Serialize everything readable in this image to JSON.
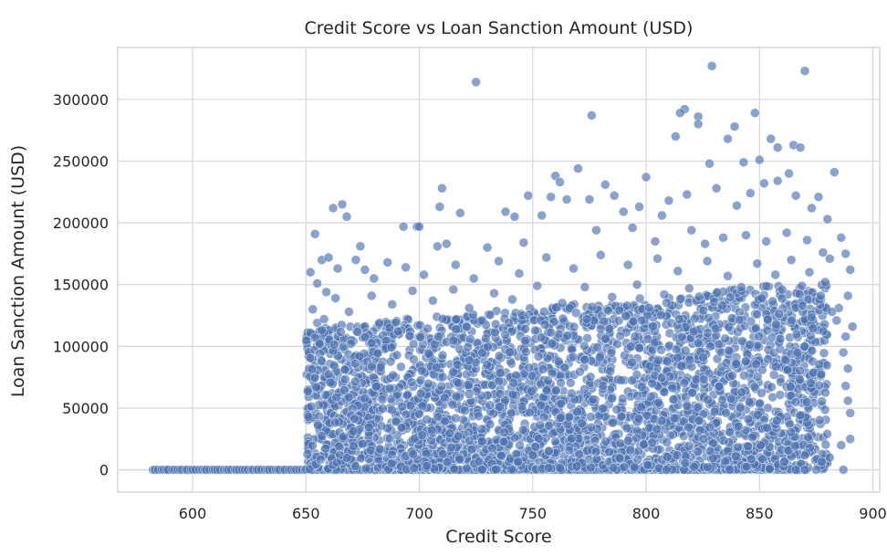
{
  "chart_data": {
    "type": "scatter",
    "title": "Credit Score vs Loan Sanction Amount (USD)",
    "xlabel": "Credit Score",
    "ylabel": "Loan Sanction Amount (USD)",
    "xlim": [
      567,
      903
    ],
    "ylim": [
      -18000,
      342000
    ],
    "x_ticks": [
      600,
      650,
      700,
      750,
      800,
      850,
      900
    ],
    "y_ticks": [
      0,
      50000,
      100000,
      150000,
      200000,
      250000,
      300000
    ],
    "grid": true,
    "marker_color": "#4c72b0",
    "zero_band": {
      "x_range": [
        582,
        868
      ],
      "y": 0
    },
    "dense_cloud": {
      "x_range": [
        650,
        890
      ],
      "y_range": [
        0,
        200000
      ]
    },
    "points": [
      [
        725,
        314000
      ],
      [
        829,
        327000
      ],
      [
        870,
        323000
      ],
      [
        776,
        287000
      ],
      [
        817,
        292000
      ],
      [
        815,
        289000
      ],
      [
        823,
        286000
      ],
      [
        823,
        280000
      ],
      [
        848,
        289000
      ],
      [
        839,
        278000
      ],
      [
        813,
        270000
      ],
      [
        855,
        268000
      ],
      [
        858,
        261000
      ],
      [
        865,
        263000
      ],
      [
        868,
        261000
      ],
      [
        836,
        268000
      ],
      [
        828,
        248000
      ],
      [
        760,
        238000
      ],
      [
        762,
        233000
      ],
      [
        770,
        244000
      ],
      [
        800,
        237000
      ],
      [
        850,
        251000
      ],
      [
        843,
        249000
      ],
      [
        852,
        232000
      ],
      [
        858,
        234000
      ],
      [
        863,
        240000
      ],
      [
        883,
        241000
      ],
      [
        710,
        228000
      ],
      [
        748,
        222000
      ],
      [
        758,
        221000
      ],
      [
        765,
        219000
      ],
      [
        775,
        219000
      ],
      [
        782,
        231000
      ],
      [
        786,
        222000
      ],
      [
        797,
        213000
      ],
      [
        810,
        218000
      ],
      [
        818,
        223000
      ],
      [
        831,
        228000
      ],
      [
        846,
        224000
      ],
      [
        866,
        222000
      ],
      [
        876,
        221000
      ],
      [
        662,
        212000
      ],
      [
        666,
        215000
      ],
      [
        668,
        205000
      ],
      [
        709,
        213000
      ],
      [
        718,
        208000
      ],
      [
        738,
        209000
      ],
      [
        742,
        205000
      ],
      [
        754,
        206000
      ],
      [
        790,
        209000
      ],
      [
        807,
        206000
      ],
      [
        840,
        214000
      ],
      [
        873,
        212000
      ],
      [
        880,
        203000
      ],
      [
        886,
        188000
      ],
      [
        888,
        175000
      ],
      [
        890,
        162000
      ],
      [
        889,
        141000
      ],
      [
        891,
        116000
      ],
      [
        885,
        131000
      ],
      [
        884,
        121000
      ],
      [
        888,
        108000
      ],
      [
        887,
        95000
      ],
      [
        889,
        82000
      ],
      [
        888,
        68000
      ],
      [
        889,
        56000
      ],
      [
        890,
        46000
      ],
      [
        890,
        25000
      ],
      [
        886,
        20000
      ],
      [
        887,
        0
      ],
      [
        881,
        10000
      ],
      [
        875,
        0
      ],
      [
        870,
        0
      ],
      [
        866,
        0
      ],
      [
        654,
        191000
      ],
      [
        657,
        170000
      ],
      [
        660,
        172000
      ],
      [
        672,
        170000
      ],
      [
        674,
        181000
      ],
      [
        693,
        197000
      ],
      [
        699,
        197000
      ],
      [
        700,
        197000
      ],
      [
        708,
        181000
      ],
      [
        712,
        183000
      ],
      [
        730,
        180000
      ],
      [
        746,
        184000
      ],
      [
        778,
        194000
      ],
      [
        794,
        196000
      ],
      [
        804,
        185000
      ],
      [
        820,
        194000
      ],
      [
        826,
        183000
      ],
      [
        834,
        188000
      ],
      [
        844,
        190000
      ],
      [
        853,
        185000
      ],
      [
        862,
        192000
      ],
      [
        871,
        186000
      ],
      [
        878,
        176000
      ],
      [
        652,
        160000
      ],
      [
        655,
        151000
      ],
      [
        659,
        144000
      ],
      [
        664,
        163000
      ],
      [
        676,
        162000
      ],
      [
        680,
        155000
      ],
      [
        686,
        168000
      ],
      [
        694,
        164000
      ],
      [
        702,
        158000
      ],
      [
        716,
        166000
      ],
      [
        724,
        155000
      ],
      [
        735,
        169000
      ],
      [
        744,
        159000
      ],
      [
        756,
        172000
      ],
      [
        768,
        163000
      ],
      [
        780,
        174000
      ],
      [
        792,
        166000
      ],
      [
        805,
        171000
      ],
      [
        814,
        161000
      ],
      [
        827,
        169000
      ],
      [
        836,
        157000
      ],
      [
        849,
        167000
      ],
      [
        857,
        158000
      ],
      [
        864,
        170000
      ],
      [
        872,
        160000
      ],
      [
        879,
        152000
      ],
      [
        881,
        171000
      ],
      [
        653,
        130000
      ],
      [
        655,
        119000
      ],
      [
        658,
        122000
      ],
      [
        663,
        139000
      ],
      [
        669,
        128000
      ],
      [
        679,
        141000
      ],
      [
        688,
        134000
      ],
      [
        697,
        145000
      ],
      [
        706,
        137000
      ],
      [
        715,
        146000
      ],
      [
        722,
        131000
      ],
      [
        733,
        143000
      ],
      [
        741,
        138000
      ],
      [
        752,
        149000
      ],
      [
        763,
        135000
      ],
      [
        773,
        148000
      ],
      [
        785,
        140000
      ],
      [
        796,
        150000
      ],
      [
        808,
        142000
      ],
      [
        819,
        147000
      ],
      [
        830,
        136000
      ],
      [
        842,
        148000
      ],
      [
        851,
        139000
      ],
      [
        860,
        146000
      ],
      [
        869,
        133000
      ],
      [
        877,
        141000
      ],
      [
        882,
        128000
      ],
      [
        652,
        111000
      ],
      [
        654,
        107000
      ],
      [
        656,
        102000
      ],
      [
        657,
        113000
      ]
    ]
  }
}
